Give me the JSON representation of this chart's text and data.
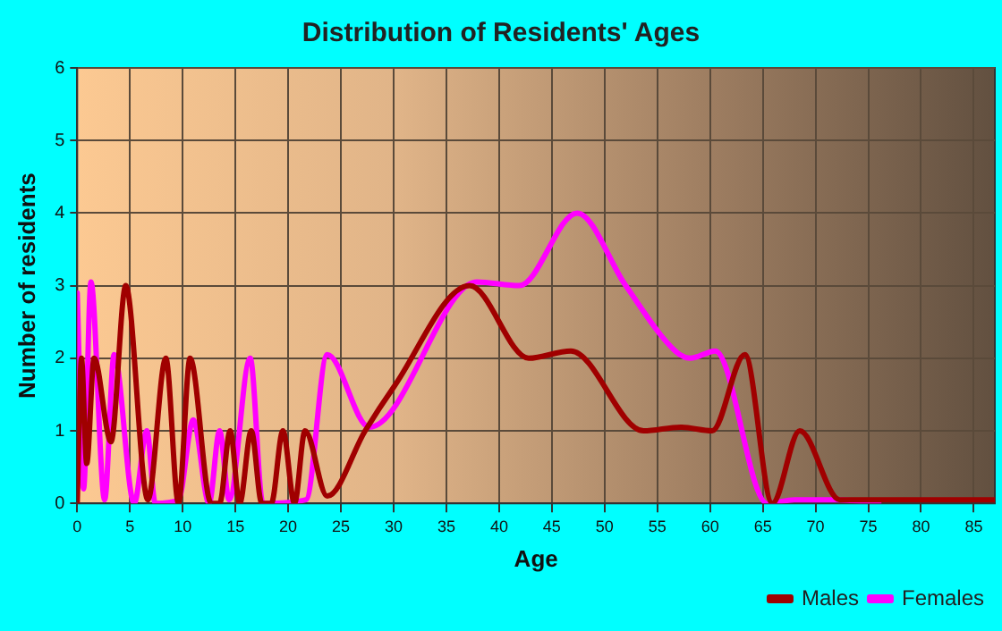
{
  "chart_data": {
    "type": "line",
    "title": "Distribution of Residents' Ages",
    "xlabel": "Age",
    "ylabel": "Number of residents",
    "xlim": [
      0,
      87
    ],
    "xticks": [
      0,
      5,
      10,
      15,
      20,
      25,
      30,
      35,
      40,
      45,
      50,
      55,
      60,
      65,
      70,
      75,
      80,
      85
    ],
    "ylim": [
      0,
      6
    ],
    "yticks": [
      0,
      1,
      2,
      3,
      4,
      5,
      6
    ],
    "grid": true,
    "legend": "bottom right",
    "marker": "none",
    "line_style": "solid",
    "series": [
      {
        "name": "Males",
        "color": "#a00000",
        "x": [
          0,
          0.4,
          0.9,
          1.6,
          3.2,
          4.6,
          6.7,
          8.4,
          9.6,
          10.7,
          12.7,
          13.5,
          14.5,
          15.4,
          16.5,
          17.5,
          18.4,
          19.5,
          20.6,
          21.6,
          23.7,
          27.3,
          30,
          37.2,
          42.8,
          46.8,
          53.7,
          57.2,
          60.2,
          63.3,
          65.9,
          68.5,
          72.3,
          87
        ],
        "values": [
          0,
          2,
          0.55,
          2,
          0.85,
          3,
          0.05,
          2,
          0,
          2,
          0,
          0,
          1,
          0,
          1,
          0,
          0,
          1,
          0,
          1,
          0.1,
          1,
          1.6,
          3,
          2,
          2.1,
          1,
          1.05,
          1,
          2.05,
          0,
          1,
          0.05,
          0.05
        ]
      },
      {
        "name": "Females",
        "color": "#ff00ff",
        "x": [
          0,
          0.6,
          1.3,
          2.6,
          3.5,
          5.4,
          6.6,
          7.4,
          9.6,
          11,
          12.5,
          13.5,
          14.4,
          16.4,
          17.6,
          21.7,
          23.7,
          27.7,
          37.9,
          41.9,
          47.4,
          52,
          56.7,
          58.1,
          60.5,
          65.4,
          68,
          72,
          76
        ],
        "values": [
          2.9,
          0.2,
          3.05,
          0.05,
          2.05,
          0,
          1,
          0,
          0.05,
          1.15,
          0,
          1,
          0.05,
          2,
          0,
          0.05,
          2.05,
          1.05,
          3.05,
          3,
          4,
          3,
          2.1,
          2,
          2.1,
          0,
          0.05,
          0.05,
          0
        ]
      }
    ]
  }
}
